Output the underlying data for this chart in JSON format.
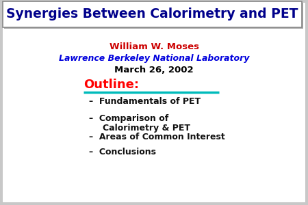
{
  "title": "Synergies Between Calorimetry and PET",
  "title_color": "#00008B",
  "title_bg": "#FFFFFF",
  "title_shadow": "#AAAAAA",
  "title_border": "#888888",
  "author": "William W. Moses",
  "author_color": "#CC0000",
  "institution": "Lawrence Berkeley National Laboratory",
  "institution_color": "#0000DD",
  "date": "March 26, 2002",
  "date_color": "#000000",
  "outline_label": "Outline:",
  "outline_color": "#FF0000",
  "outline_line_color": "#00BBBB",
  "bullet_items": [
    [
      "Fundamentals of PET"
    ],
    [
      "Comparison of",
      "Calorimetry & PET"
    ],
    [
      "Areas of Common Interest"
    ],
    [
      "Conclusions"
    ]
  ],
  "bullet_color": "#111111",
  "bg_color": "#C8C8C8",
  "slide_bg": "#FFFFFF",
  "figsize": [
    4.5,
    3.0
  ],
  "dpi": 100
}
